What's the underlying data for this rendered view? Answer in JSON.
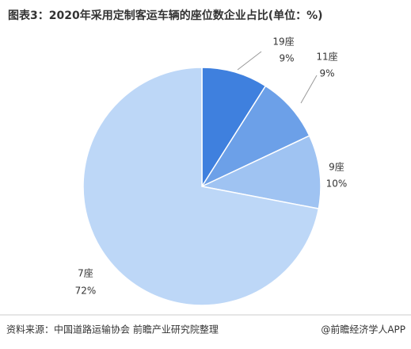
{
  "chart_data": {
    "type": "pie",
    "title": "图表3：2020年采用定制客运车辆的座位数企业占比(单位：%)",
    "categories": [
      "19座",
      "11座",
      "9座",
      "7座"
    ],
    "values": [
      9,
      9,
      10,
      72
    ],
    "value_labels": [
      "9%",
      "9%",
      "10%",
      "72%"
    ],
    "colors": [
      "#3f80de",
      "#6ca0e8",
      "#9fc3f2",
      "#bdd7f7"
    ]
  },
  "footer": {
    "source": "资料来源：中国道路运输协会 前瞻产业研究院整理",
    "brand": "@前瞻经济学人APP"
  }
}
